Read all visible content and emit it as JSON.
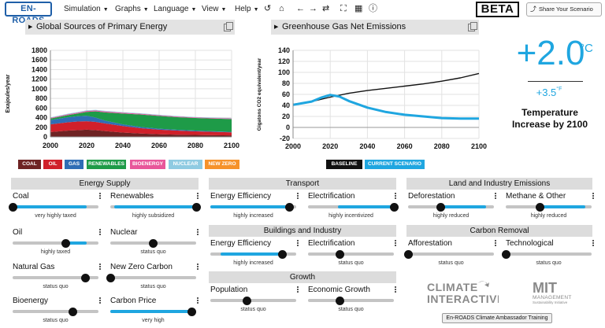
{
  "header": {
    "logo": "EN-ROADS",
    "menus": [
      "Simulation",
      "Graphs",
      "Language",
      "View",
      "Help"
    ],
    "beta": "BETA",
    "share": "Share Your Scenario",
    "icons": [
      "undo-icon",
      "home-icon",
      "back-icon",
      "forward-icon",
      "refresh-icon",
      "fullscreen-icon",
      "table-icon",
      "info-icon"
    ]
  },
  "graph1": {
    "title": "Global Sources of Primary Energy",
    "ylabel": "Exajoules/year"
  },
  "graph2": {
    "title": "Greenhouse Gas Net Emissions",
    "ylabel": "Gigatons CO2 equivalent/year"
  },
  "legend1": [
    {
      "label": "COAL",
      "color": "#6e2323"
    },
    {
      "label": "OIL",
      "color": "#d0202a"
    },
    {
      "label": "GAS",
      "color": "#2f6db5"
    },
    {
      "label": "RENEWABLES",
      "color": "#1e9b48"
    },
    {
      "label": "BIOENERGY",
      "color": "#e8569a"
    },
    {
      "label": "NUCLEAR",
      "color": "#8fcbe2"
    },
    {
      "label": "NEW ZERO",
      "color": "#f6922a"
    }
  ],
  "legend2": [
    {
      "label": "BASELINE",
      "color": "#111111"
    },
    {
      "label": "CURRENT SCENARIO",
      "color": "#1fa6e0"
    }
  ],
  "temperature": {
    "celsius": "+2.0",
    "celsius_unit": "°C",
    "fahrenheit": "+3.5",
    "fahrenheit_unit": "°F",
    "label": "Temperature Increase by 2100"
  },
  "chart_data": [
    {
      "type": "area",
      "title": "Global Sources of Primary Energy",
      "ylabel": "Exajoules/year",
      "xlabel": "",
      "ylim": [
        0,
        1800
      ],
      "xlim": [
        2000,
        2100
      ],
      "yticks": [
        0,
        200,
        400,
        600,
        800,
        1000,
        1200,
        1400,
        1600,
        1800
      ],
      "xticks": [
        2000,
        2020,
        2040,
        2060,
        2080,
        2100
      ],
      "grid": true,
      "stacked": true,
      "x": [
        2000,
        2010,
        2015,
        2020,
        2025,
        2030,
        2040,
        2050,
        2060,
        2070,
        2080,
        2090,
        2100
      ],
      "series": [
        {
          "name": "COAL",
          "values": [
            100,
            130,
            140,
            150,
            140,
            120,
            90,
            70,
            55,
            45,
            40,
            35,
            30
          ]
        },
        {
          "name": "OIL",
          "values": [
            160,
            175,
            180,
            175,
            170,
            160,
            135,
            110,
            95,
            85,
            75,
            70,
            65
          ]
        },
        {
          "name": "GAS",
          "values": [
            90,
            105,
            110,
            115,
            90,
            60,
            35,
            25,
            20,
            18,
            15,
            12,
            10
          ]
        },
        {
          "name": "RENEWABLES",
          "values": [
            30,
            45,
            55,
            80,
            130,
            170,
            225,
            260,
            265,
            262,
            262,
            263,
            265
          ]
        },
        {
          "name": "BIOENERGY",
          "values": [
            15,
            17,
            18,
            20,
            20,
            20,
            18,
            16,
            15,
            14,
            13,
            12,
            12
          ]
        },
        {
          "name": "NUCLEAR",
          "values": [
            10,
            12,
            12,
            12,
            12,
            12,
            11,
            10,
            10,
            9,
            9,
            8,
            8
          ]
        },
        {
          "name": "NEW ZERO",
          "values": [
            0,
            0,
            0,
            0,
            0,
            0,
            0,
            0,
            0,
            0,
            0,
            0,
            0
          ]
        }
      ]
    },
    {
      "type": "line",
      "title": "Greenhouse Gas Net Emissions",
      "ylabel": "Gigatons CO2 equivalent/year",
      "xlabel": "",
      "ylim": [
        -20,
        140
      ],
      "xlim": [
        2000,
        2100
      ],
      "yticks": [
        -20,
        0,
        20,
        40,
        60,
        80,
        100,
        120,
        140
      ],
      "xticks": [
        2000,
        2020,
        2040,
        2060,
        2080,
        2100
      ],
      "grid": true,
      "series": [
        {
          "name": "BASELINE",
          "x": [
            2000,
            2010,
            2020,
            2030,
            2040,
            2050,
            2060,
            2070,
            2080,
            2090,
            2100
          ],
          "values": [
            42,
            47,
            55,
            62,
            67,
            71,
            75,
            79,
            84,
            90,
            98
          ]
        },
        {
          "name": "CURRENT SCENARIO",
          "x": [
            2000,
            2010,
            2015,
            2020,
            2025,
            2030,
            2040,
            2050,
            2060,
            2070,
            2080,
            2090,
            2100
          ],
          "values": [
            41,
            47,
            54,
            59,
            56,
            48,
            36,
            28,
            23,
            20,
            17,
            16,
            16
          ]
        }
      ]
    }
  ],
  "sections": [
    {
      "title": "Energy Supply",
      "sliders": [
        {
          "label": "Coal",
          "status": "very highly taxed",
          "value": 0.0,
          "fill": [
            0.0,
            0.86
          ]
        },
        {
          "label": "Renewables",
          "status": "highly subsidized",
          "value": 1.0,
          "fill": [
            0.05,
            1.0
          ]
        },
        {
          "label": "Oil",
          "status": "highly taxed",
          "value": 0.62,
          "fill": [
            0.62,
            0.86
          ]
        },
        {
          "label": "Nuclear",
          "status": "status quo",
          "value": 0.5,
          "fill": [
            0.5,
            0.5
          ]
        },
        {
          "label": "Natural Gas",
          "status": "status quo",
          "value": 0.85,
          "fill": [
            0.85,
            0.85
          ]
        },
        {
          "label": "New Zero Carbon",
          "status": "status quo",
          "value": 0.0,
          "fill": [
            0.0,
            0.0
          ]
        },
        {
          "label": "Bioenergy",
          "status": "status quo",
          "value": 0.7,
          "fill": [
            0.7,
            0.7
          ]
        },
        {
          "label": "Carbon Price",
          "status": "very high",
          "value": 0.95,
          "fill": [
            0.0,
            0.95
          ]
        }
      ]
    },
    {
      "title": "Transport",
      "sliders": [
        {
          "label": "Energy Efficiency",
          "status": "highly increased",
          "value": 0.92,
          "fill": [
            0.0,
            0.92
          ]
        },
        {
          "label": "Electrification",
          "status": "highly incentivized",
          "value": 1.0,
          "fill": [
            0.35,
            1.0
          ]
        }
      ]
    },
    {
      "title": "Buildings and Industry",
      "sliders": [
        {
          "label": "Energy Efficiency",
          "status": "highly increased",
          "value": 0.84,
          "fill": [
            0.12,
            0.84
          ]
        },
        {
          "label": "Electrification",
          "status": "status quo",
          "value": 0.37,
          "fill": [
            0.37,
            0.37
          ]
        }
      ]
    },
    {
      "title": "Growth",
      "sliders": [
        {
          "label": "Population",
          "status": "status quo",
          "value": 0.43,
          "fill": [
            0.43,
            0.43
          ]
        },
        {
          "label": "Economic Growth",
          "status": "status quo",
          "value": 0.37,
          "fill": [
            0.37,
            0.37
          ]
        }
      ]
    },
    {
      "title": "Land and Industry Emissions",
      "sliders": [
        {
          "label": "Deforestation",
          "status": "highly reduced",
          "value": 0.38,
          "fill": [
            0.38,
            0.91
          ]
        },
        {
          "label": "Methane & Other",
          "status": "highly reduced",
          "value": 0.4,
          "fill": [
            0.4,
            0.93
          ]
        }
      ]
    },
    {
      "title": "Carbon Removal",
      "sliders": [
        {
          "label": "Afforestation",
          "status": "status quo",
          "value": 0.0,
          "fill": [
            0.0,
            0.0
          ]
        },
        {
          "label": "Technological",
          "status": "status quo",
          "value": 0.0,
          "fill": [
            0.0,
            0.0
          ]
        }
      ]
    }
  ],
  "logos": {
    "ci_line1": "CLIMATE",
    "ci_line2": "INTERACTIVE",
    "mit_line1": "MIT",
    "mit_line2": "MANAGEMENT",
    "mit_line3": "Sustainability Initiative"
  },
  "training": "En-ROADS Climate Ambassador Training"
}
